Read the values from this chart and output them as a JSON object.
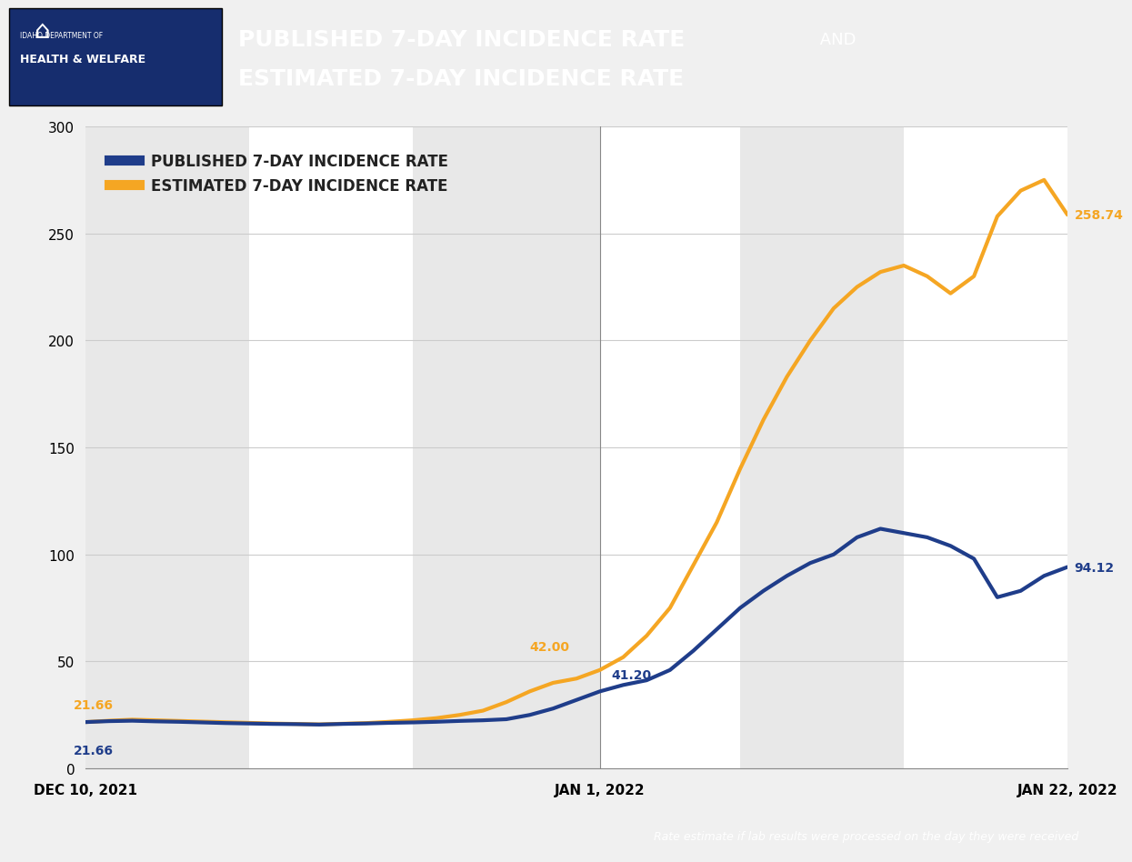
{
  "title_line1_bold": "PUBLISHED 7-DAY INCIDENCE RATE",
  "title_line1_normal": " AND",
  "title_line2": "ESTIMATED 7-DAY INCIDENCE RATE",
  "header_bg_color": "#1a3a8c",
  "header_logo_bg": "#162d6e",
  "legend_label_published": "PUBLISHED 7-DAY INCIDENCE RATE",
  "legend_label_estimated": "ESTIMATED 7-DAY INCIDENCE RATE",
  "published_color": "#1f3d8a",
  "estimated_color": "#f5a623",
  "plot_bg": "#ffffff",
  "stripe_color": "#e8e8e8",
  "ylim": [
    0,
    300
  ],
  "yticks": [
    0,
    50,
    100,
    150,
    200,
    250,
    300
  ],
  "xlabel_left": "DEC 10, 2021",
  "xlabel_mid": "JAN 1, 2022",
  "xlabel_right": "JAN 22, 2022",
  "footer_text": "Rate estimate if lab results were processed on the day they were received",
  "footer_bg": "#1a1a1a",
  "annotation_start_published": "21.66",
  "annotation_start_estimated": "21.66",
  "annotation_jan1_published": "41.20",
  "annotation_jan1_estimated": "42.00",
  "annotation_end_published": "94.12",
  "annotation_end_estimated": "258.74",
  "num_days": 43,
  "published_values": [
    21.66,
    22.1,
    22.3,
    22.0,
    21.8,
    21.5,
    21.2,
    21.0,
    20.8,
    20.7,
    20.5,
    20.8,
    21.0,
    21.3,
    21.5,
    21.8,
    22.2,
    22.5,
    23.0,
    25.0,
    28.0,
    32.0,
    36.0,
    39.0,
    41.2,
    46.0,
    55.0,
    65.0,
    75.0,
    83.0,
    90.0,
    96.0,
    100.0,
    108.0,
    112.0,
    110.0,
    108.0,
    104.0,
    98.0,
    80.0,
    83.0,
    90.0,
    94.12
  ],
  "estimated_values": [
    21.66,
    22.3,
    22.8,
    22.5,
    22.2,
    21.9,
    21.6,
    21.3,
    21.0,
    20.8,
    20.6,
    20.9,
    21.2,
    21.8,
    22.5,
    23.5,
    25.0,
    27.0,
    31.0,
    36.0,
    40.0,
    42.0,
    46.0,
    52.0,
    62.0,
    75.0,
    95.0,
    115.0,
    140.0,
    163.0,
    183.0,
    200.0,
    215.0,
    225.0,
    232.0,
    235.0,
    230.0,
    222.0,
    230.0,
    258.0,
    270.0,
    275.0,
    258.74
  ]
}
